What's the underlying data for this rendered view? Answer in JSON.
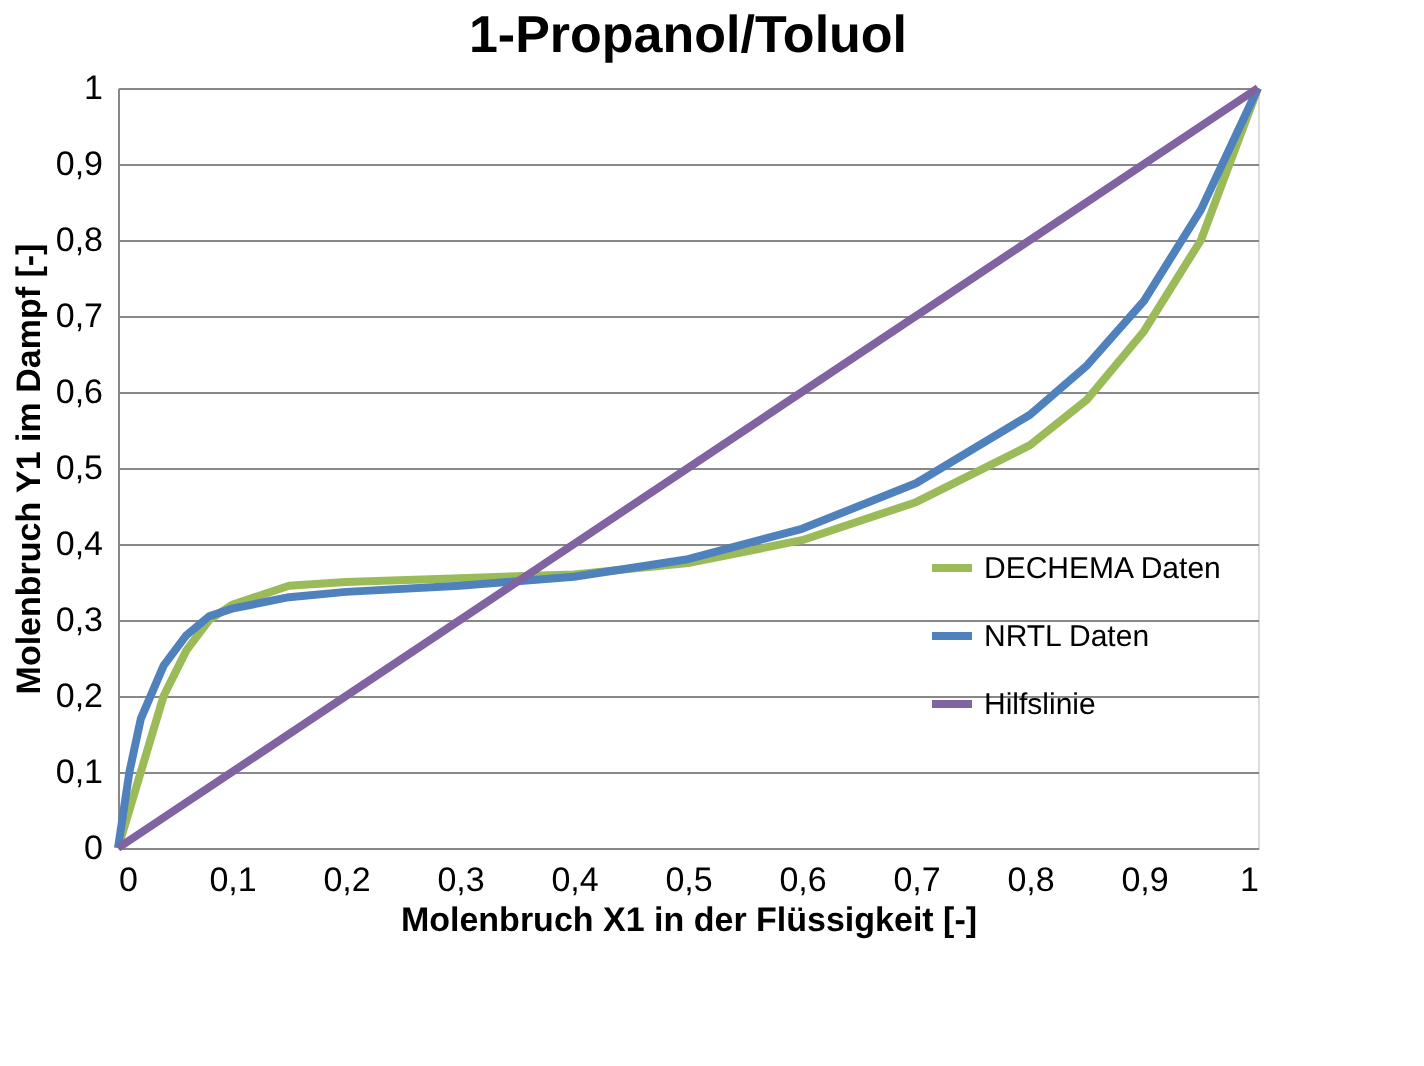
{
  "chart_data": {
    "type": "line",
    "title": "1-Propanol/Toluol",
    "xlabel": "Molenbruch X1 in der Flüssigkeit [-]",
    "ylabel": "Molenbruch Y1 im Dampf [-]",
    "xlim": [
      0,
      1
    ],
    "ylim": [
      0,
      1
    ],
    "xticks": [
      0,
      {
        "value": 0.1,
        "label": "0,1"
      },
      {
        "value": 0.2,
        "label": "0,2"
      },
      {
        "value": 0.3,
        "label": "0,3"
      },
      {
        "value": 0.4,
        "label": "0,4"
      },
      {
        "value": 0.5,
        "label": "0,5"
      },
      {
        "value": 0.6,
        "label": "0,6"
      },
      {
        "value": 0.7,
        "label": "0,7"
      },
      {
        "value": 0.8,
        "label": "0,8"
      },
      {
        "value": 0.9,
        "label": "0,9"
      },
      1
    ],
    "yticks": [
      0,
      {
        "value": 0.1,
        "label": "0,1"
      },
      {
        "value": 0.2,
        "label": "0,2"
      },
      {
        "value": 0.3,
        "label": "0,3"
      },
      {
        "value": 0.4,
        "label": "0,4"
      },
      {
        "value": 0.5,
        "label": "0,5"
      },
      {
        "value": 0.6,
        "label": "0,6"
      },
      {
        "value": 0.7,
        "label": "0,7"
      },
      {
        "value": 0.8,
        "label": "0,8"
      },
      {
        "value": 0.9,
        "label": "0,9"
      },
      1
    ],
    "grid": "y",
    "legend": "right",
    "marker": "none",
    "line_style": "solid",
    "series": [
      {
        "name": "DECHEMA Daten",
        "color": "#9bbb59",
        "x": [
          0,
          0.02,
          0.04,
          0.06,
          0.08,
          0.1,
          0.15,
          0.2,
          0.3,
          0.4,
          0.5,
          0.6,
          0.7,
          0.8,
          0.85,
          0.9,
          0.95,
          1
        ],
        "values": [
          0,
          0.1,
          0.2,
          0.26,
          0.3,
          0.32,
          0.345,
          0.35,
          0.355,
          0.36,
          0.375,
          0.405,
          0.455,
          0.53,
          0.59,
          0.68,
          0.8,
          1
        ]
      },
      {
        "name": "NRTL Daten",
        "color": "#4f81bd",
        "x": [
          0,
          0.01,
          0.02,
          0.04,
          0.06,
          0.08,
          0.1,
          0.15,
          0.2,
          0.3,
          0.4,
          0.5,
          0.6,
          0.7,
          0.8,
          0.85,
          0.9,
          0.95,
          1
        ],
        "values": [
          0,
          0.1,
          0.17,
          0.24,
          0.28,
          0.305,
          0.315,
          0.33,
          0.337,
          0.345,
          0.357,
          0.38,
          0.42,
          0.48,
          0.57,
          0.635,
          0.72,
          0.84,
          1
        ]
      },
      {
        "name": "Hilfslinie",
        "color": "#8064a2",
        "x": [
          0,
          1
        ],
        "values": [
          0,
          1
        ]
      }
    ]
  }
}
